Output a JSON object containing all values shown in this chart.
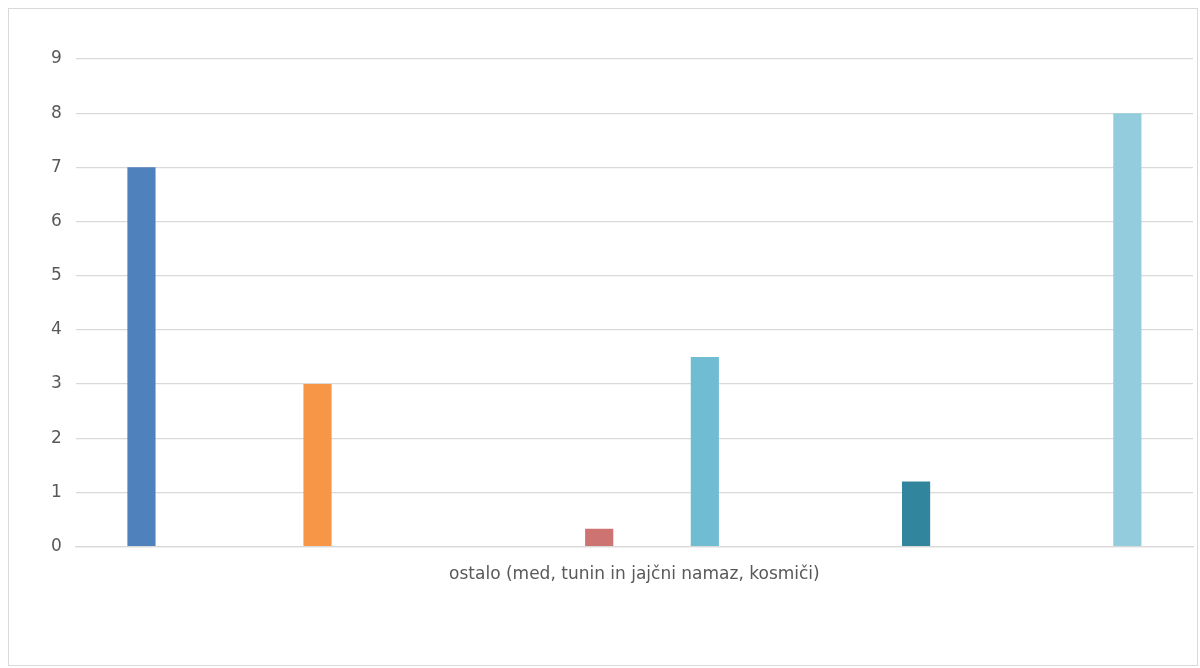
{
  "chart_data": {
    "type": "bar",
    "categories": [
      "ostalo (med, tunin in jajčni namaz, kosmiči)"
    ],
    "series": [
      {
        "color": "#4f81bd",
        "values": [
          7
        ]
      },
      {
        "values": [
          null
        ]
      },
      {
        "values": [
          null
        ]
      },
      {
        "values": [
          null
        ]
      },
      {
        "values": [
          null
        ]
      },
      {
        "color": "#f79646",
        "values": [
          3
        ]
      },
      {
        "values": [
          null
        ]
      },
      {
        "values": [
          null
        ]
      },
      {
        "values": [
          null
        ]
      },
      {
        "values": [
          null
        ]
      },
      {
        "values": [
          null
        ]
      },
      {
        "values": [
          null
        ]
      },
      {
        "values": [
          null
        ]
      },
      {
        "color": "#cd7371",
        "values": [
          0.33
        ]
      },
      {
        "values": [
          null
        ]
      },
      {
        "values": [
          null
        ]
      },
      {
        "color": "#70bcd3",
        "values": [
          3.5
        ]
      },
      {
        "values": [
          null
        ]
      },
      {
        "values": [
          null
        ]
      },
      {
        "values": [
          null
        ]
      },
      {
        "values": [
          null
        ]
      },
      {
        "values": [
          null
        ]
      },
      {
        "color": "#31859c",
        "values": [
          1.2
        ]
      },
      {
        "values": [
          null
        ]
      },
      {
        "values": [
          null
        ]
      },
      {
        "values": [
          null
        ]
      },
      {
        "values": [
          null
        ]
      },
      {
        "values": [
          null
        ]
      },
      {
        "color": "#93cddd",
        "values": [
          8
        ]
      }
    ],
    "ylim": [
      0,
      9
    ],
    "yticks": [
      0,
      1,
      2,
      3,
      4,
      5,
      6,
      7,
      8,
      9
    ],
    "grid": "y",
    "legend": false
  }
}
